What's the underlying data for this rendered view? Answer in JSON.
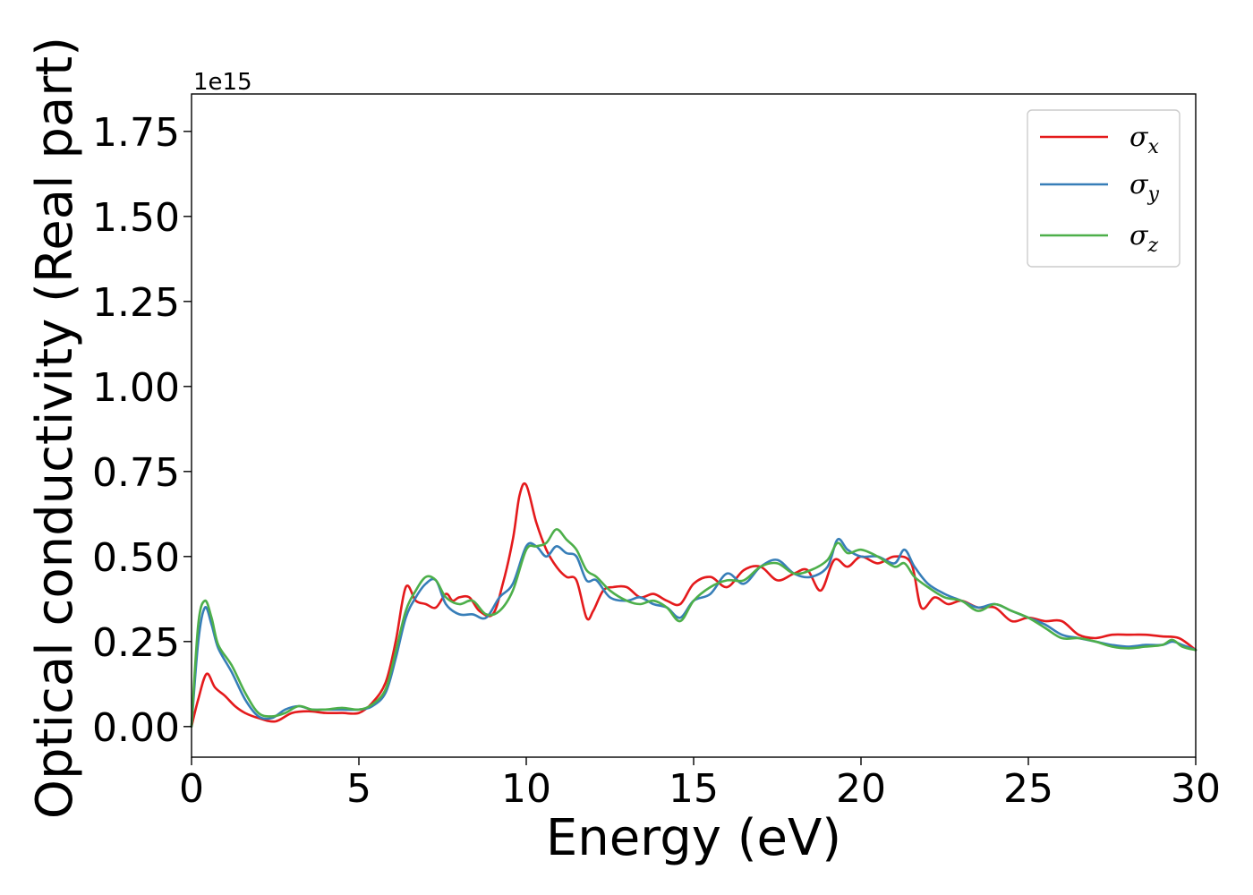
{
  "chart_data": {
    "type": "line",
    "xlabel": "Energy (eV)",
    "ylabel": "Optical conductivity (Real part)",
    "offset_text": "1e15",
    "xlim": [
      0,
      30
    ],
    "ylim": [
      -0.09,
      1.86
    ],
    "xticks": [
      0,
      5,
      10,
      15,
      20,
      25,
      30
    ],
    "xtick_labels": [
      "0",
      "5",
      "10",
      "15",
      "20",
      "25",
      "30"
    ],
    "yticks": [
      0.0,
      0.25,
      0.5,
      0.75,
      1.0,
      1.25,
      1.5,
      1.75
    ],
    "ytick_labels": [
      "0.00",
      "0.25",
      "0.50",
      "0.75",
      "1.00",
      "1.25",
      "1.50",
      "1.75"
    ],
    "grid": false,
    "legend_position": "top-right",
    "series": [
      {
        "name": "σx",
        "color": "#e41a1c",
        "x": [
          0,
          0.2,
          0.45,
          0.7,
          1.0,
          1.3,
          1.6,
          2.0,
          2.5,
          3.0,
          3.5,
          4.0,
          4.5,
          5.0,
          5.4,
          5.8,
          6.1,
          6.4,
          6.7,
          7.0,
          7.3,
          7.6,
          7.8,
          8.0,
          8.3,
          8.6,
          9.0,
          9.3,
          9.6,
          9.8,
          10.0,
          10.3,
          10.6,
          10.9,
          11.2,
          11.5,
          11.8,
          12.0,
          12.3,
          12.6,
          13.0,
          13.4,
          13.8,
          14.2,
          14.6,
          15.0,
          15.5,
          16.0,
          16.5,
          17.0,
          17.5,
          18.0,
          18.4,
          18.8,
          19.2,
          19.6,
          20.0,
          20.5,
          21.0,
          21.5,
          21.8,
          22.2,
          22.6,
          23.0,
          23.5,
          24.0,
          24.5,
          25.0,
          25.5,
          26.0,
          26.5,
          27.0,
          27.5,
          28.0,
          28.5,
          29.0,
          29.5,
          30.0
        ],
        "y": [
          0.0,
          0.08,
          0.155,
          0.115,
          0.09,
          0.06,
          0.04,
          0.025,
          0.015,
          0.04,
          0.045,
          0.04,
          0.04,
          0.04,
          0.07,
          0.13,
          0.25,
          0.41,
          0.37,
          0.36,
          0.35,
          0.39,
          0.37,
          0.38,
          0.38,
          0.34,
          0.33,
          0.42,
          0.55,
          0.68,
          0.71,
          0.6,
          0.52,
          0.47,
          0.44,
          0.43,
          0.32,
          0.34,
          0.4,
          0.41,
          0.41,
          0.38,
          0.39,
          0.37,
          0.36,
          0.42,
          0.44,
          0.41,
          0.46,
          0.47,
          0.43,
          0.45,
          0.46,
          0.4,
          0.49,
          0.47,
          0.5,
          0.48,
          0.5,
          0.48,
          0.35,
          0.38,
          0.36,
          0.37,
          0.35,
          0.35,
          0.31,
          0.32,
          0.31,
          0.31,
          0.27,
          0.26,
          0.27,
          0.27,
          0.27,
          0.265,
          0.26,
          0.225
        ]
      },
      {
        "name": "σy",
        "color": "#377eb8",
        "x": [
          0,
          0.2,
          0.4,
          0.6,
          0.8,
          1.2,
          1.6,
          2.0,
          2.4,
          2.8,
          3.2,
          3.6,
          4.0,
          4.5,
          5.0,
          5.4,
          5.8,
          6.1,
          6.4,
          6.7,
          7.0,
          7.3,
          7.6,
          8.0,
          8.4,
          8.8,
          9.2,
          9.6,
          10.0,
          10.3,
          10.6,
          10.9,
          11.2,
          11.5,
          11.8,
          12.1,
          12.5,
          13.0,
          13.4,
          13.8,
          14.2,
          14.6,
          15.0,
          15.5,
          16.0,
          16.5,
          17.0,
          17.5,
          18.0,
          18.5,
          19.0,
          19.3,
          19.6,
          20.0,
          20.5,
          21.0,
          21.3,
          21.6,
          22.0,
          22.5,
          23.0,
          23.5,
          24.0,
          24.5,
          25.0,
          25.5,
          26.0,
          26.5,
          27.0,
          27.5,
          28.0,
          28.5,
          29.0,
          29.3,
          29.6,
          30.0
        ],
        "y": [
          0.0,
          0.25,
          0.35,
          0.3,
          0.23,
          0.16,
          0.08,
          0.03,
          0.025,
          0.05,
          0.06,
          0.05,
          0.05,
          0.05,
          0.05,
          0.06,
          0.1,
          0.2,
          0.32,
          0.38,
          0.42,
          0.43,
          0.36,
          0.33,
          0.33,
          0.32,
          0.38,
          0.42,
          0.53,
          0.53,
          0.5,
          0.53,
          0.51,
          0.5,
          0.43,
          0.43,
          0.38,
          0.37,
          0.38,
          0.36,
          0.35,
          0.32,
          0.37,
          0.39,
          0.45,
          0.42,
          0.47,
          0.49,
          0.45,
          0.44,
          0.47,
          0.55,
          0.52,
          0.5,
          0.5,
          0.48,
          0.52,
          0.47,
          0.42,
          0.39,
          0.37,
          0.35,
          0.36,
          0.34,
          0.32,
          0.3,
          0.27,
          0.26,
          0.25,
          0.24,
          0.235,
          0.24,
          0.24,
          0.25,
          0.24,
          0.225
        ]
      },
      {
        "name": "σz",
        "color": "#4daf4a",
        "x": [
          0,
          0.2,
          0.4,
          0.6,
          0.8,
          1.2,
          1.6,
          2.0,
          2.4,
          2.8,
          3.2,
          3.6,
          4.0,
          4.5,
          5.0,
          5.4,
          5.8,
          6.1,
          6.4,
          6.7,
          7.0,
          7.3,
          7.6,
          8.0,
          8.4,
          8.8,
          9.2,
          9.6,
          10.0,
          10.3,
          10.6,
          10.9,
          11.2,
          11.5,
          11.8,
          12.1,
          12.5,
          13.0,
          13.4,
          13.8,
          14.2,
          14.6,
          15.0,
          15.5,
          16.0,
          16.5,
          17.0,
          17.5,
          18.0,
          18.5,
          19.0,
          19.3,
          19.6,
          20.0,
          20.5,
          21.0,
          21.3,
          21.6,
          22.0,
          22.5,
          23.0,
          23.5,
          24.0,
          24.5,
          25.0,
          25.5,
          26.0,
          26.5,
          27.0,
          27.5,
          28.0,
          28.5,
          29.0,
          29.3,
          29.6,
          30.0
        ],
        "y": [
          0.0,
          0.3,
          0.37,
          0.32,
          0.24,
          0.18,
          0.1,
          0.04,
          0.03,
          0.04,
          0.06,
          0.05,
          0.05,
          0.055,
          0.05,
          0.065,
          0.11,
          0.22,
          0.34,
          0.4,
          0.44,
          0.43,
          0.38,
          0.36,
          0.37,
          0.33,
          0.34,
          0.4,
          0.52,
          0.53,
          0.54,
          0.58,
          0.55,
          0.52,
          0.46,
          0.44,
          0.4,
          0.37,
          0.36,
          0.37,
          0.35,
          0.31,
          0.37,
          0.41,
          0.43,
          0.43,
          0.47,
          0.48,
          0.45,
          0.46,
          0.49,
          0.54,
          0.51,
          0.52,
          0.5,
          0.47,
          0.48,
          0.44,
          0.41,
          0.38,
          0.37,
          0.34,
          0.36,
          0.34,
          0.32,
          0.29,
          0.26,
          0.26,
          0.25,
          0.235,
          0.23,
          0.235,
          0.24,
          0.255,
          0.235,
          0.225
        ]
      }
    ]
  },
  "legend": {
    "items": [
      {
        "base": "σ",
        "sub": "x",
        "color": "#e41a1c"
      },
      {
        "base": "σ",
        "sub": "y",
        "color": "#377eb8"
      },
      {
        "base": "σ",
        "sub": "z",
        "color": "#4daf4a"
      }
    ]
  }
}
